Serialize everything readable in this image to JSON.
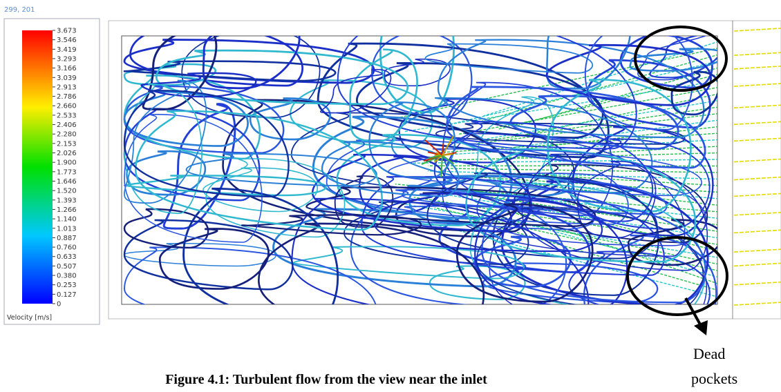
{
  "header": {
    "coords": "299, 201"
  },
  "legend": {
    "labels": [
      "3.673",
      "3.546",
      "3.419",
      "3.293",
      "3.166",
      "3.039",
      "2.913",
      "2.786",
      "2.660",
      "2.533",
      "2.406",
      "2.280",
      "2.153",
      "2.026",
      "1.900",
      "1.773",
      "1.646",
      "1.520",
      "1.393",
      "1.266",
      "1.140",
      "1.013",
      "0.887",
      "0.760",
      "0.633",
      "0.507",
      "0.380",
      "0.253",
      "0.127",
      "0"
    ],
    "title": "Velocity [m/s]"
  },
  "annotation": {
    "line1": "Dead",
    "line2": "pockets"
  },
  "caption": "Figure 4.1: Turbulent flow from the view near the inlet"
}
